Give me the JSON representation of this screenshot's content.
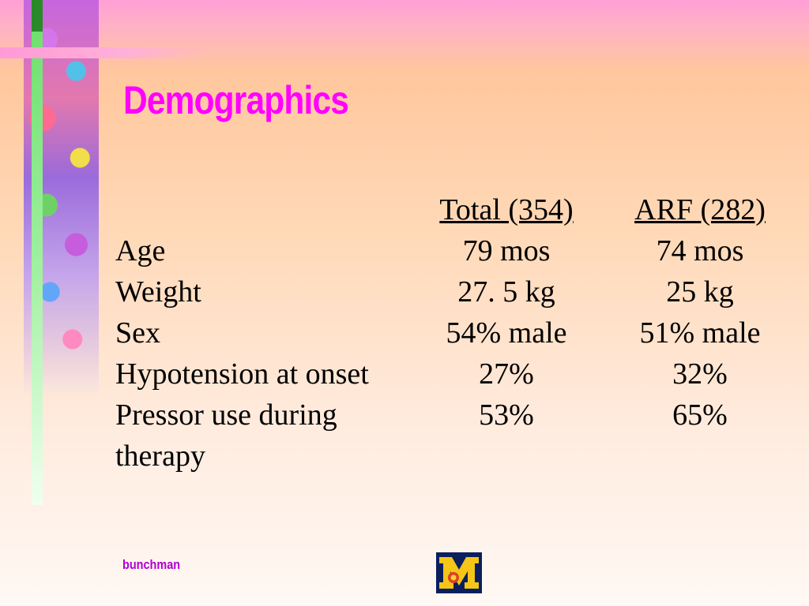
{
  "slide": {
    "title": "Demographics",
    "footer": "bunchman",
    "accent_title_color": "#ff00ff",
    "accent_footer_color": "#b000d0"
  },
  "table": {
    "headers": [
      "",
      "Total (354)",
      "ARF (282)"
    ],
    "rows": [
      {
        "label": "Age",
        "total": "79 mos",
        "arf": "74 mos"
      },
      {
        "label": "Weight",
        "total": "27. 5 kg",
        "arf": "25 kg"
      },
      {
        "label": "Sex",
        "total": "54% male",
        "arf": "51% male"
      },
      {
        "label": "Hypotension at onset",
        "total": "27%",
        "arf": "32%"
      },
      {
        "label": "Pressor use during therapy",
        "total": "53%",
        "arf": "65%"
      }
    ]
  },
  "logo": {
    "icon": "block-m-logo-icon"
  }
}
